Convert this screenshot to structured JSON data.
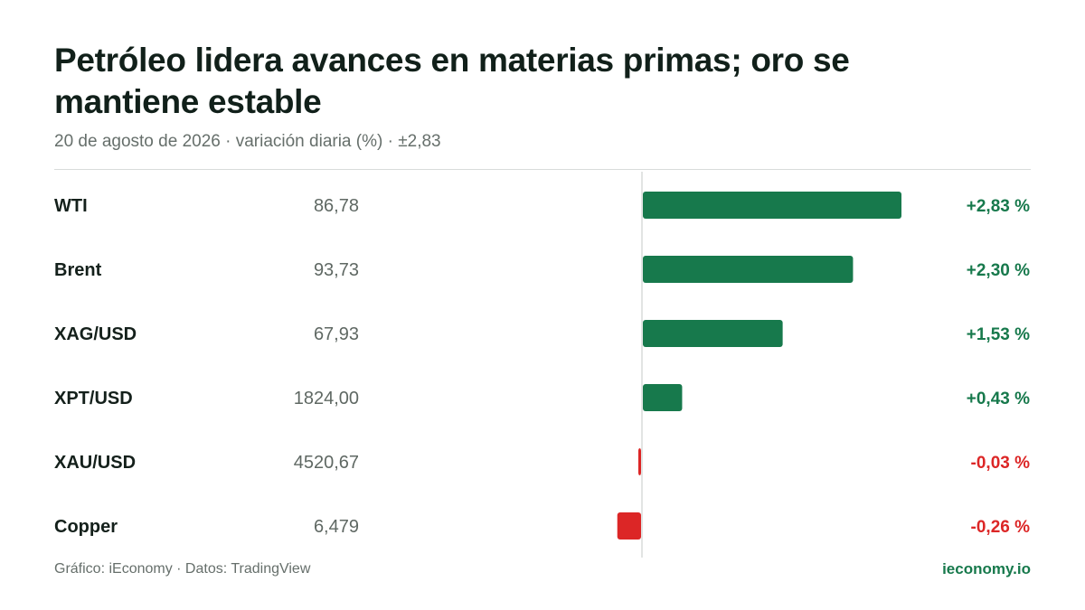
{
  "header": {
    "title": "Petróleo lidera avances en materias primas; oro se mantiene estable",
    "subtitle": "20 de agosto de 2026 · variación diaria (%) · ±2,83"
  },
  "footer": {
    "source": "Gráfico: iEconomy · Datos: TradingView",
    "brand": "ieconomy.io"
  },
  "colors": {
    "positive": "#17794c",
    "negative": "#dc2626",
    "axis": "#d8dcda"
  },
  "chart_data": {
    "type": "bar",
    "orientation": "horizontal",
    "xlim": [
      -2.83,
      2.83
    ],
    "categories": [
      "WTI",
      "Brent",
      "XAG/USD",
      "XPT/USD",
      "XAU/USD",
      "Copper"
    ],
    "prices": [
      "86,78",
      "93,73",
      "67,93",
      "1824,00",
      "4520,67",
      "6,479"
    ],
    "values": [
      2.83,
      2.3,
      1.53,
      0.43,
      -0.03,
      -0.26
    ],
    "value_labels": [
      "+2,83 %",
      "+2,30 %",
      "+1,53 %",
      "+0,43 %",
      "-0,03 %",
      "-0,26 %"
    ]
  }
}
